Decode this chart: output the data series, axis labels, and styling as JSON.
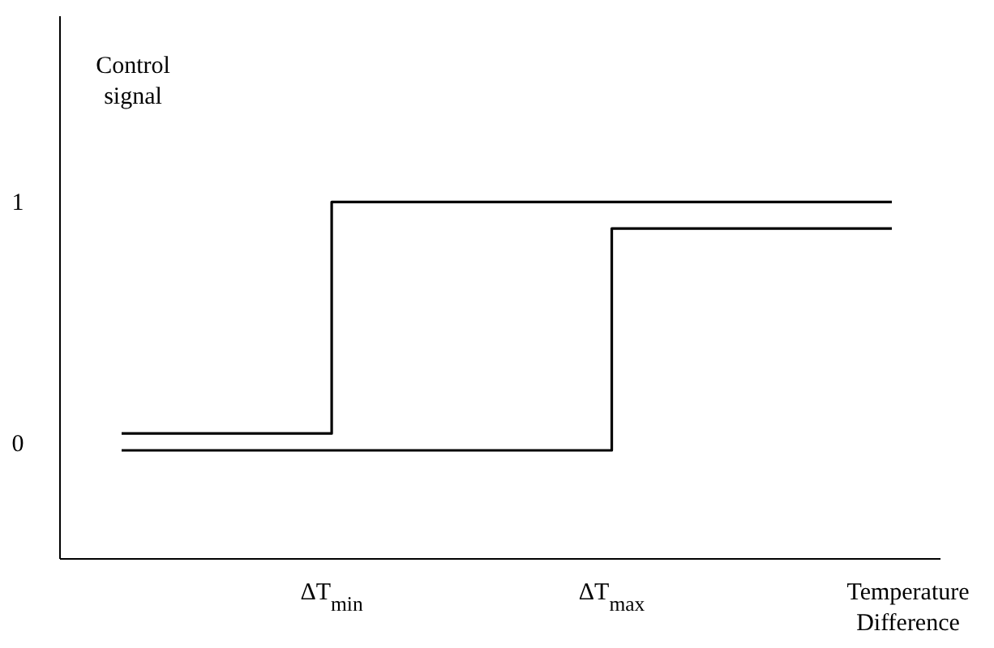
{
  "chart_data": {
    "type": "step",
    "xlabel": "Temperature Difference",
    "ylabel": "Control signal",
    "categories": [
      null,
      null,
      null,
      "ΔT$_{min}$",
      null,
      null,
      null,
      "ΔT$_{max}$",
      null,
      null,
      null,
      null
    ],
    "ylim": [
      -0.48,
      1.77
    ],
    "yticks": [
      0,
      1
    ],
    "line_style": "solid",
    "series": [
      {
        "color": "#000000",
        "values": [
          0.04,
          0.04,
          0.04,
          1,
          1,
          1,
          1,
          1,
          1,
          1,
          1,
          1
        ]
      },
      {
        "color": "#000000",
        "values": [
          -0.03,
          -0.03,
          -0.03,
          -0.03,
          -0.03,
          -0.03,
          -0.03,
          0.89,
          0.89,
          0.89,
          0.89,
          0.89
        ]
      }
    ]
  }
}
